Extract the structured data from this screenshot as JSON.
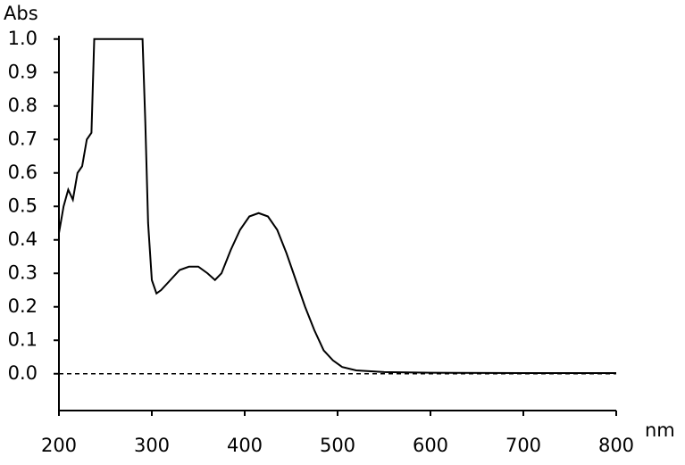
{
  "chart_data": {
    "type": "line",
    "y_label": "Abs",
    "x_label": "nm",
    "x": [
      200,
      205,
      210,
      215,
      220,
      225,
      230,
      235,
      238,
      290,
      293,
      296,
      300,
      305,
      310,
      320,
      330,
      340,
      350,
      360,
      368,
      375,
      385,
      395,
      405,
      415,
      425,
      435,
      445,
      455,
      465,
      475,
      485,
      495,
      505,
      520,
      550,
      600,
      700,
      800
    ],
    "series": [
      {
        "name": "Abs",
        "color": "#000000",
        "values": [
          0.42,
          0.5,
          0.55,
          0.52,
          0.6,
          0.62,
          0.7,
          0.72,
          1.0,
          1.0,
          0.75,
          0.45,
          0.28,
          0.24,
          0.25,
          0.28,
          0.31,
          0.32,
          0.32,
          0.3,
          0.28,
          0.3,
          0.37,
          0.43,
          0.47,
          0.48,
          0.47,
          0.43,
          0.36,
          0.28,
          0.2,
          0.13,
          0.07,
          0.04,
          0.02,
          0.01,
          0.005,
          0.003,
          0.002,
          0.002
        ]
      }
    ],
    "xlim": [
      200,
      800
    ],
    "xticks": [
      200,
      300,
      400,
      500,
      600,
      700,
      800
    ],
    "ylim": [
      -0.11,
      1.01
    ],
    "yticks": [
      {
        "value": 0,
        "label": "0.0"
      },
      0.1,
      0.2,
      0.3,
      0.4,
      0.5,
      0.6,
      0.7,
      0.8,
      0.9,
      {
        "value": 1,
        "label": "1.0"
      }
    ],
    "reference_line": {
      "value": 0,
      "style": "dashed"
    },
    "grid": false
  }
}
